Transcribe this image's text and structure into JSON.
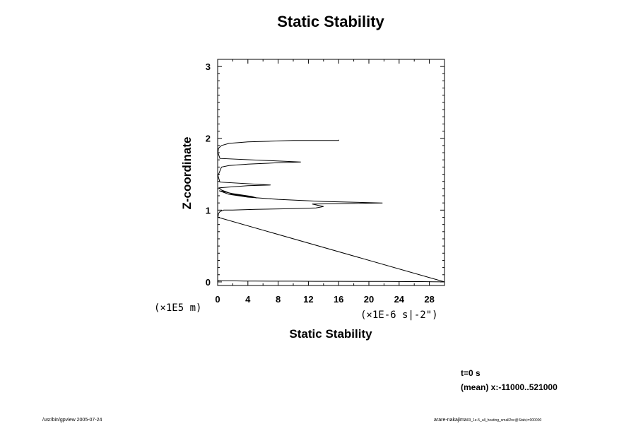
{
  "chart_data": {
    "type": "line",
    "title": "Static Stability",
    "xlabel": "Static Stability",
    "ylabel": "Z-coordinate",
    "x_unit_note": "(×1E-6 s|-2\")",
    "y_unit_note": "(×1E5 m)",
    "xlim": [
      0,
      30
    ],
    "ylim": [
      -0.05,
      3.1
    ],
    "x_ticks": [
      "0",
      "4",
      "8",
      "12",
      "16",
      "20",
      "24",
      "28"
    ],
    "y_ticks": [
      "0",
      "1",
      "2",
      "3"
    ],
    "grid": false,
    "series": [
      {
        "x": [
          0,
          0,
          0.1,
          0.3,
          0.6,
          1.0,
          2.0,
          3.5,
          5.0,
          7.0,
          10.0,
          13.0,
          16.0,
          19.0,
          22.0,
          25.0,
          27.0,
          28.5,
          30.0,
          0.05,
          0.1,
          0.3,
          0.8,
          2.0,
          5.0,
          10.0,
          13.0,
          14.0,
          12.5,
          16.0,
          21.8,
          14.0,
          8.0,
          4.0,
          1.5,
          0.2,
          2.0,
          4.5,
          5.2,
          2.0,
          0.5,
          0.2,
          4.0,
          7.0,
          0.3,
          0.05,
          0.5,
          1.5,
          4.0,
          8.0,
          11.0,
          0.3,
          0.05,
          0.1,
          0.5,
          1.5,
          4.0,
          7.0,
          10.0,
          13.0,
          15.0,
          16.0,
          16.0
        ],
        "y": [
          -0.02,
          0.0,
          0.02,
          0.02,
          0.015,
          0.015,
          0.015,
          0.012,
          0.012,
          0.01,
          0.01,
          0.008,
          0.008,
          0.006,
          0.006,
          0.004,
          0.004,
          0.002,
          0.0,
          0.9,
          0.95,
          0.98,
          1.0,
          1.0,
          1.01,
          1.02,
          1.03,
          1.05,
          1.085,
          1.09,
          1.1,
          1.12,
          1.15,
          1.18,
          1.22,
          1.27,
          1.23,
          1.19,
          1.17,
          1.22,
          1.28,
          1.31,
          1.34,
          1.35,
          1.39,
          1.48,
          1.6,
          1.62,
          1.64,
          1.66,
          1.67,
          1.72,
          1.8,
          1.86,
          1.9,
          1.93,
          1.95,
          1.96,
          1.97,
          1.97,
          1.97,
          1.97,
          1.98
        ]
      }
    ]
  },
  "annotations": {
    "time": "t=0 s",
    "mean_range": "(mean) x:-11000..521000",
    "footer_left": "/usr/bin/gpview 2005-07-24",
    "footer_right_main": "arare-nakajima",
    "footer_right_sub": "03_1e-5_all_heating_small2nc@Stab,t=000000"
  }
}
